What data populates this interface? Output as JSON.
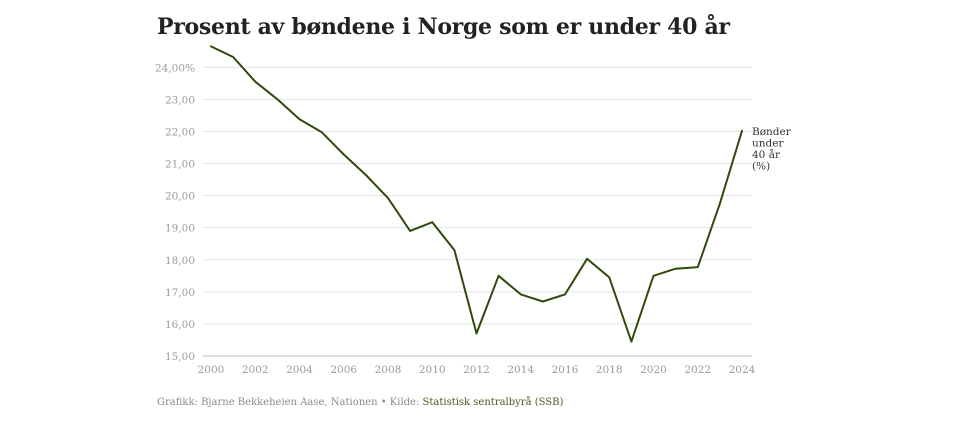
{
  "title": "Prosent av bøndene i Norge som er under 40 år",
  "footer": {
    "credit": "Grafikk: Bjarne Bekkeheien Aase, Nationen • Kilde: ",
    "source_link": "Statistisk sentralbyrå (SSB)"
  },
  "chart_data": {
    "type": "line",
    "title": "Prosent av bøndene i Norge som er under 40 år",
    "xlabel": "",
    "ylabel": "",
    "xlim": [
      2000,
      2024
    ],
    "ylim": [
      15,
      24.6
    ],
    "grid": true,
    "y_ticks": [
      "15,00",
      "16,00",
      "17,00",
      "18,00",
      "19,00",
      "20,00",
      "21,00",
      "22,00",
      "23,00",
      "24,00%"
    ],
    "y_tick_values": [
      15,
      16,
      17,
      18,
      19,
      20,
      21,
      22,
      23,
      24
    ],
    "x_ticks": [
      2000,
      2002,
      2004,
      2006,
      2008,
      2010,
      2012,
      2014,
      2016,
      2018,
      2020,
      2022,
      2024
    ],
    "series": [
      {
        "name": "Bønder under 40 år (%)",
        "label_lines": [
          "Bønder",
          "under",
          "40 år",
          "(%)"
        ],
        "color": "#2f4a0c",
        "x": [
          2000,
          2001,
          2002,
          2003,
          2004,
          2005,
          2006,
          2007,
          2008,
          2009,
          2010,
          2011,
          2012,
          2013,
          2014,
          2015,
          2016,
          2017,
          2018,
          2019,
          2020,
          2021,
          2022,
          2023,
          2024
        ],
        "values": [
          24.65,
          24.32,
          23.55,
          23.0,
          22.38,
          21.98,
          21.28,
          20.64,
          19.92,
          18.9,
          19.17,
          18.3,
          15.7,
          17.5,
          16.92,
          16.7,
          16.92,
          18.03,
          17.45,
          15.45,
          17.5,
          17.72,
          17.77,
          19.75,
          22.02
        ]
      }
    ]
  }
}
